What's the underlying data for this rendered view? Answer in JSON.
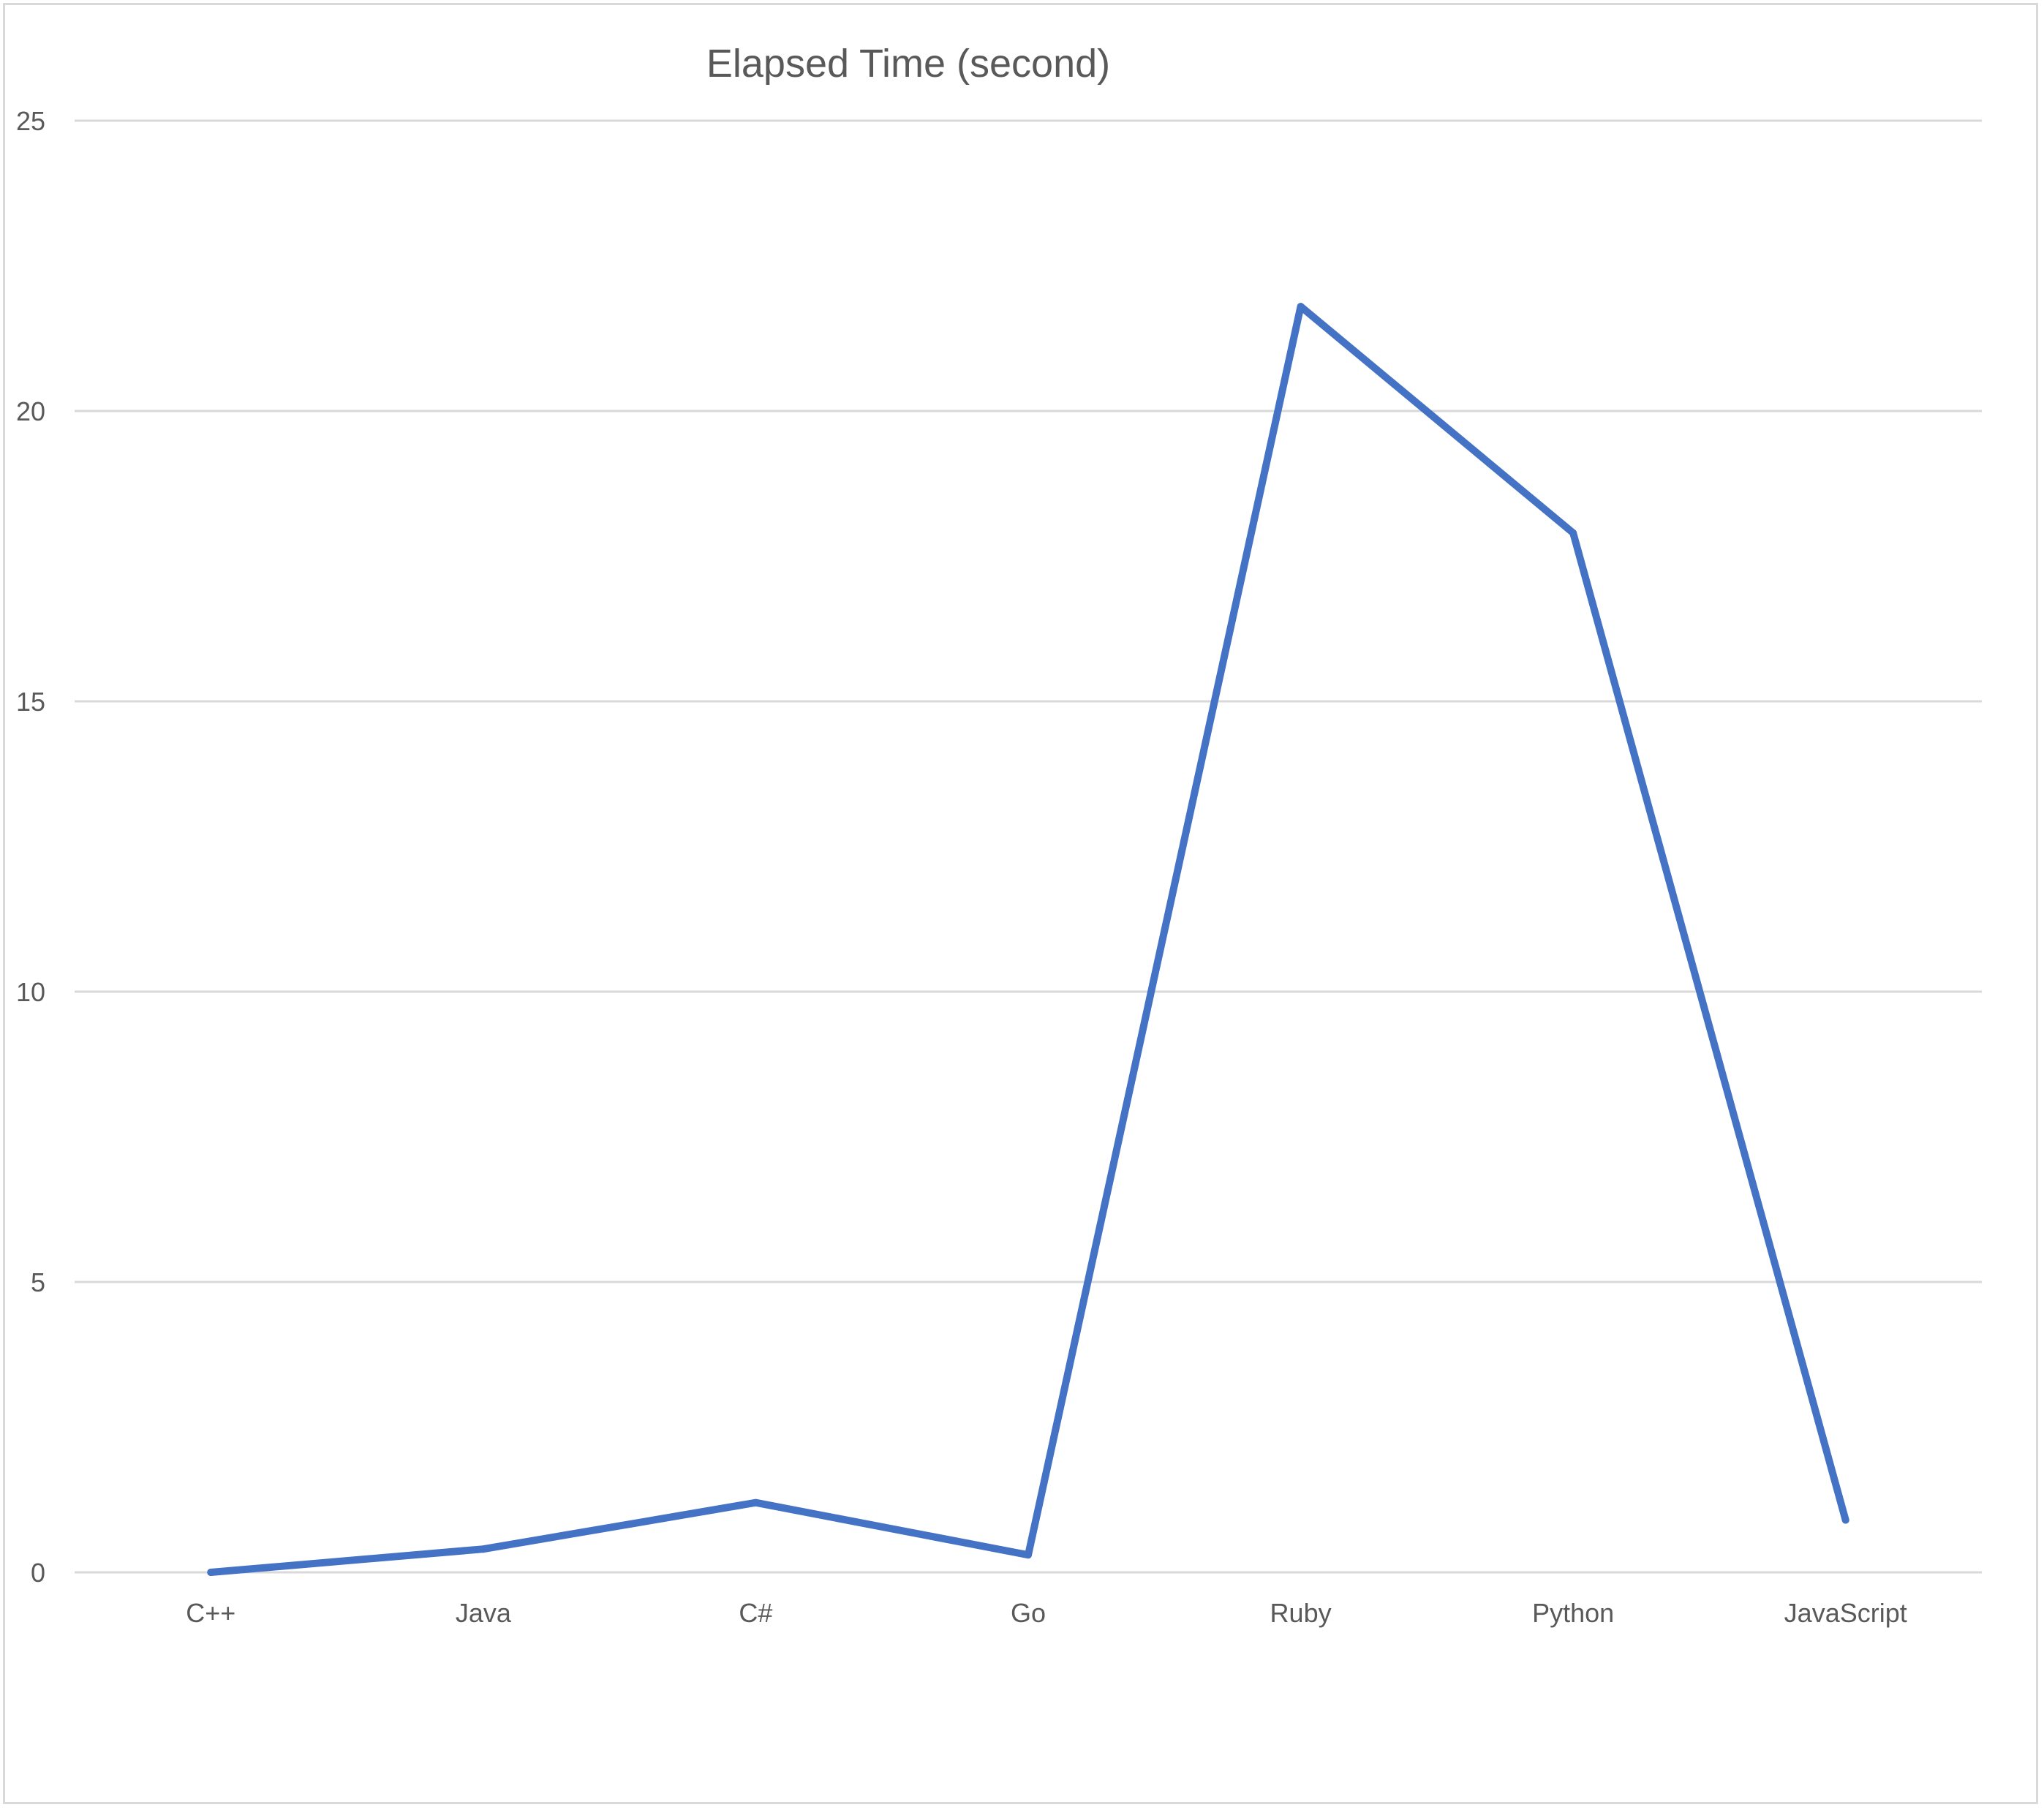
{
  "chart_data": {
    "type": "line",
    "title": "Elapsed Time (second)",
    "xlabel": "",
    "ylabel": "",
    "categories": [
      "C++",
      "Java",
      "C#",
      "Go",
      "Ruby",
      "Python",
      "JavaScript"
    ],
    "series": [
      {
        "values": [
          0.0,
          0.4,
          1.2,
          0.3,
          21.8,
          17.9,
          0.9
        ]
      }
    ],
    "ylim": [
      0,
      25
    ],
    "yticks": [
      "0",
      "5",
      "10",
      "15",
      "20",
      "25"
    ],
    "grid": true,
    "legend": "none",
    "colors": {
      "line": "#4472c4",
      "grid": "#d9d9d9",
      "text": "#595959"
    }
  }
}
